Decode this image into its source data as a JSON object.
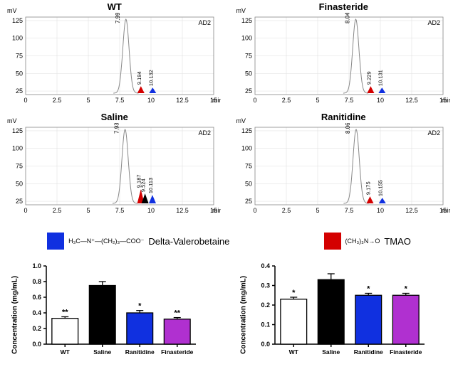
{
  "chrom_panels": [
    {
      "title": "WT",
      "label": "AD2",
      "main_peak_x": 7.999,
      "sub_peaks": [
        {
          "x": 9.194,
          "h": 10,
          "color": "#d40000"
        },
        {
          "x": 10.132,
          "h": 8,
          "color": "#1030e0"
        }
      ]
    },
    {
      "title": "Finasteride",
      "label": "AD2",
      "main_peak_x": 8.041,
      "sub_peaks": [
        {
          "x": 9.229,
          "h": 10,
          "color": "#d40000"
        },
        {
          "x": 10.131,
          "h": 8,
          "color": "#1030e0"
        }
      ]
    },
    {
      "title": "Saline",
      "label": "AD2",
      "main_peak_x": 7.933,
      "sub_peaks": [
        {
          "x": 9.187,
          "h": 20,
          "color": "#d40000"
        },
        {
          "x": 9.524,
          "h": 14,
          "color": "#000000"
        },
        {
          "x": 10.113,
          "h": 12,
          "color": "#1030e0"
        }
      ]
    },
    {
      "title": "Ranitidine",
      "label": "AD2",
      "main_peak_x": 8.068,
      "sub_peaks": [
        {
          "x": 9.175,
          "h": 10,
          "color": "#d40000"
        },
        {
          "x": 10.155,
          "h": 8,
          "color": "#1030e0"
        }
      ]
    }
  ],
  "chrom_axes": {
    "x_ticks": [
      0,
      2.5,
      5,
      7.5,
      10,
      12.5,
      15.0
    ],
    "y_ticks": [
      25,
      50,
      75,
      100,
      125
    ],
    "x_unit": "min",
    "y_unit": "mV",
    "font_size": 9
  },
  "legend": [
    {
      "color": "#1030e0",
      "struct": "H₃C—N⁺—(CH₂)₃—COO⁻",
      "label": "Delta-Valerobetaine"
    },
    {
      "color": "#d40000",
      "struct": "(CH₃)₃N→O",
      "label": "TMAO"
    }
  ],
  "bar_charts": [
    {
      "ylabel": "Concentration (mg/mL)",
      "ymax": 1.0,
      "ytick_step": 0.2,
      "ytick_decimals": 1,
      "bars": [
        {
          "label": "WT",
          "value": 0.33,
          "err": 0.02,
          "color": "#ffffff",
          "sig": "**"
        },
        {
          "label": "Saline",
          "value": 0.75,
          "err": 0.05,
          "color": "#000000",
          "sig": ""
        },
        {
          "label": "Ranitidine",
          "value": 0.4,
          "err": 0.03,
          "color": "#1030e0",
          "sig": "*"
        },
        {
          "label": "Finasteride",
          "value": 0.32,
          "err": 0.02,
          "color": "#b030d0",
          "sig": "**"
        }
      ]
    },
    {
      "ylabel": "Concentration (mg/mL)",
      "ymax": 0.4,
      "ytick_step": 0.1,
      "ytick_decimals": 1,
      "bars": [
        {
          "label": "WT",
          "value": 0.23,
          "err": 0.01,
          "color": "#ffffff",
          "sig": "*"
        },
        {
          "label": "Saline",
          "value": 0.33,
          "err": 0.03,
          "color": "#000000",
          "sig": ""
        },
        {
          "label": "Ranitidine",
          "value": 0.25,
          "err": 0.01,
          "color": "#1030e0",
          "sig": "*"
        },
        {
          "label": "Finasteride",
          "value": 0.25,
          "err": 0.01,
          "color": "#b030d0",
          "sig": "*"
        }
      ]
    }
  ]
}
